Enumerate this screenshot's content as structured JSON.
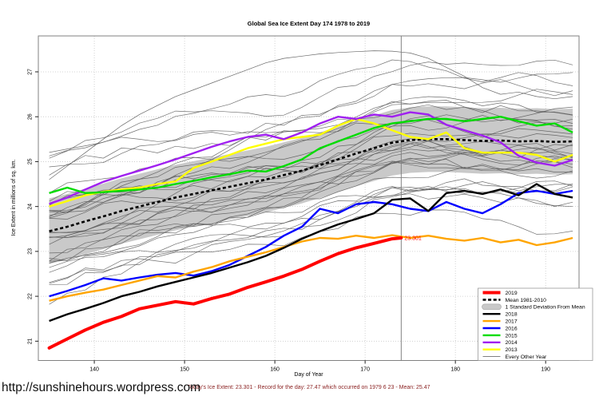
{
  "title": "Global Sea Ice Extent Day 174 1978 to 2019",
  "url_text": "http://sunshinehours.wordpress.com",
  "caption": "Today's Ice Extent: 23.301  - Record for the day: 27.47 which occurred on 1979 6 23  - Mean: 25.47",
  "colors": {
    "caption": "#8B2323",
    "grid": "#C8C8C8",
    "border": "#808080",
    "marker_line": "#828282",
    "band_fill": "#C9C9C9",
    "background_line": "#575757",
    "tick": "#222222",
    "legend_border": "#999999"
  },
  "chart_data": {
    "type": "line",
    "title": "Global Sea Ice Extent Day 174 1978 to 2019",
    "xlabel": "Day of Year",
    "ylabel": "Ice Extent in millions of sq. km.",
    "x_ticks": [
      140,
      150,
      160,
      170,
      180,
      190
    ],
    "y_ticks": [
      21,
      22,
      23,
      24,
      25,
      26,
      27
    ],
    "xlim": [
      133.8,
      193.7
    ],
    "ylim": [
      20.57,
      27.8
    ],
    "grid": true,
    "legend_position": "bottom-right",
    "days": [
      135,
      137,
      139,
      141,
      143,
      145,
      147,
      149,
      151,
      153,
      155,
      157,
      159,
      161,
      163,
      165,
      167,
      169,
      171,
      173,
      175,
      177,
      179,
      181,
      183,
      185,
      187,
      189,
      191,
      193
    ],
    "series": [
      {
        "name": "2013",
        "color": "#FFFF00",
        "width": 2.4,
        "values": [
          24.0,
          24.12,
          24.25,
          24.33,
          24.38,
          24.42,
          24.5,
          24.56,
          24.86,
          25.0,
          25.15,
          25.3,
          25.4,
          25.5,
          25.55,
          25.6,
          25.8,
          25.95,
          25.85,
          25.7,
          25.55,
          25.5,
          25.65,
          25.3,
          25.2,
          25.2,
          25.2,
          25.15,
          25.0,
          25.15
        ]
      },
      {
        "name": "2014",
        "color": "#A020F0",
        "width": 2.4,
        "values": [
          24.06,
          24.2,
          24.38,
          24.55,
          24.68,
          24.8,
          24.92,
          25.05,
          25.19,
          25.33,
          25.45,
          25.55,
          25.6,
          25.5,
          25.65,
          25.85,
          26.0,
          25.95,
          26.05,
          26.0,
          26.1,
          26.05,
          25.82,
          25.7,
          25.58,
          25.43,
          25.13,
          24.98,
          24.91,
          25.04
        ]
      },
      {
        "name": "2015",
        "color": "#00DC00",
        "width": 2.4,
        "values": [
          24.3,
          24.42,
          24.3,
          24.32,
          24.35,
          24.38,
          24.42,
          24.5,
          24.57,
          24.65,
          24.72,
          24.8,
          24.78,
          24.9,
          25.05,
          25.3,
          25.45,
          25.6,
          25.75,
          25.85,
          25.9,
          25.95,
          25.95,
          25.9,
          25.95,
          26.0,
          25.9,
          25.8,
          25.85,
          25.65
        ]
      },
      {
        "name": "2016",
        "color": "#0000FF",
        "width": 2.4,
        "values": [
          22.0,
          22.12,
          22.25,
          22.4,
          22.35,
          22.42,
          22.48,
          22.52,
          22.46,
          22.56,
          22.7,
          22.9,
          23.1,
          23.35,
          23.55,
          23.95,
          23.85,
          24.05,
          24.1,
          24.05,
          23.95,
          23.9,
          24.1,
          23.95,
          23.85,
          24.05,
          24.3,
          24.35,
          24.28,
          24.35
        ]
      },
      {
        "name": "2017",
        "color": "#FFA500",
        "width": 2.4,
        "values": [
          21.9,
          22.0,
          22.08,
          22.15,
          22.25,
          22.35,
          22.45,
          22.42,
          22.55,
          22.65,
          22.78,
          22.88,
          22.98,
          23.1,
          23.22,
          23.3,
          23.28,
          23.35,
          23.3,
          23.36,
          23.3,
          23.35,
          23.28,
          23.24,
          23.3,
          23.2,
          23.26,
          23.14,
          23.2,
          23.3
        ]
      },
      {
        "name": "2018",
        "color": "#000000",
        "width": 2.4,
        "values": [
          21.45,
          21.6,
          21.72,
          21.85,
          22.0,
          22.1,
          22.22,
          22.32,
          22.42,
          22.52,
          22.64,
          22.76,
          22.9,
          23.08,
          23.28,
          23.45,
          23.6,
          23.72,
          23.85,
          24.15,
          24.18,
          23.9,
          24.3,
          24.35,
          24.28,
          24.38,
          24.25,
          24.5,
          24.28,
          24.2
        ]
      }
    ],
    "series_2019": {
      "name": "2019",
      "color": "#FF0000",
      "width": 4,
      "days": [
        135,
        137,
        139,
        141,
        143,
        145,
        147,
        149,
        151,
        153,
        155,
        157,
        159,
        161,
        163,
        165,
        167,
        169,
        171,
        173,
        174
      ],
      "values": [
        20.85,
        21.05,
        21.25,
        21.42,
        21.55,
        21.72,
        21.8,
        21.88,
        21.83,
        21.95,
        22.05,
        22.2,
        22.32,
        22.45,
        22.6,
        22.78,
        22.95,
        23.08,
        23.18,
        23.28,
        23.301
      ]
    },
    "mean": {
      "name": "Mean 1981-2010",
      "color": "#000000",
      "width": 2.6,
      "dash": "4,3",
      "values": [
        23.45,
        23.55,
        23.67,
        23.78,
        23.9,
        24.0,
        24.1,
        24.2,
        24.28,
        24.36,
        24.44,
        24.52,
        24.6,
        24.7,
        24.8,
        24.92,
        25.05,
        25.18,
        25.3,
        25.42,
        25.48,
        25.5,
        25.5,
        25.48,
        25.46,
        25.47,
        25.45,
        25.46,
        25.44,
        25.45
      ]
    },
    "band_sigma": 0.73,
    "record_line": {
      "year_note": "record year shown among thin lines, record 27.47 on day 174",
      "values": [
        24.6,
        24.9,
        25.2,
        25.5,
        25.8,
        26.05,
        26.25,
        26.45,
        26.6,
        26.75,
        26.9,
        27.05,
        27.2,
        27.3,
        27.35,
        27.4,
        27.43,
        27.45,
        27.47,
        27.46,
        27.42,
        27.3,
        27.1,
        26.9,
        26.65,
        26.5,
        26.55,
        26.45,
        26.4,
        26.45
      ]
    },
    "background_years": {
      "label": "Every Other Year",
      "count": 33,
      "seed": 7,
      "spread": 1.55
    },
    "marker": {
      "day": 174,
      "label": "23.301",
      "value": 23.301,
      "color": "#FF0000"
    }
  },
  "legend": {
    "items": [
      {
        "label": "2019",
        "swatch": "line",
        "color": "#FF0000",
        "thick": 4
      },
      {
        "label": "Mean 1981-2010",
        "swatch": "dashed",
        "color": "#000000",
        "thick": 2.6
      },
      {
        "label": "1 Standard Deviation From Mean",
        "swatch": "band",
        "color": "#C9C9C9"
      },
      {
        "label": "2018",
        "swatch": "line",
        "color": "#000000",
        "thick": 2.4
      },
      {
        "label": "2017",
        "swatch": "line",
        "color": "#FFA500",
        "thick": 2.4
      },
      {
        "label": "2016",
        "swatch": "line",
        "color": "#0000FF",
        "thick": 2.4
      },
      {
        "label": "2015",
        "swatch": "line",
        "color": "#00DC00",
        "thick": 2.4
      },
      {
        "label": "2014",
        "swatch": "line",
        "color": "#A020F0",
        "thick": 2.4
      },
      {
        "label": "2013",
        "swatch": "line",
        "color": "#FFFF00",
        "thick": 2.4
      },
      {
        "label": "Every Other Year",
        "swatch": "thinline",
        "color": "#575757"
      }
    ]
  }
}
